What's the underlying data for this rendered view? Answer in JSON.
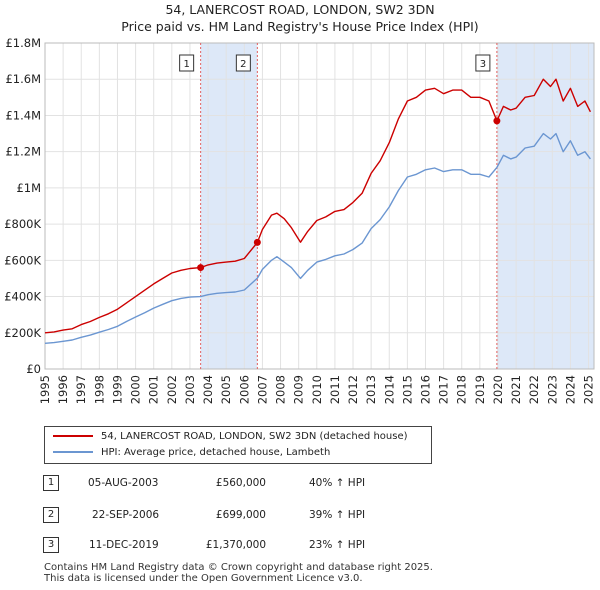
{
  "title": "54, LANERCOST ROAD, LONDON, SW2 3DN",
  "subtitle": "Price paid vs. HM Land Registry's House Price Index (HPI)",
  "legend": {
    "property": "54, LANERCOST ROAD, LONDON, SW2 3DN (detached house)",
    "hpi": "HPI: Average price, detached house, Lambeth"
  },
  "transactions": [
    {
      "num": "1",
      "date": "05-AUG-2003",
      "price": "£560,000",
      "hpi": "40% ↑ HPI"
    },
    {
      "num": "2",
      "date": "22-SEP-2006",
      "price": "£699,000",
      "hpi": "39% ↑ HPI"
    },
    {
      "num": "3",
      "date": "11-DEC-2019",
      "price": "£1,370,000",
      "hpi": "23% ↑ HPI"
    }
  ],
  "footer": {
    "line1": "Contains HM Land Registry data © Crown copyright and database right 2025.",
    "line2": "This data is licensed under the Open Government Licence v3.0."
  },
  "colors": {
    "property": "#cc0000",
    "hpi": "#6b96d1",
    "band": "#dde8f8",
    "marker_line": "#e06060"
  },
  "chart_data": {
    "type": "line",
    "xlim": [
      1995,
      2025.3
    ],
    "ylim": [
      0,
      1800000
    ],
    "y_ticks": [
      0,
      200000,
      400000,
      600000,
      800000,
      1000000,
      1200000,
      1400000,
      1600000,
      1800000
    ],
    "y_tick_labels": [
      "£0",
      "£200K",
      "£400K",
      "£600K",
      "£800K",
      "£1M",
      "£1.2M",
      "£1.4M",
      "£1.6M",
      "£1.8M"
    ],
    "x_ticks": [
      "1995",
      "1996",
      "1997",
      "1998",
      "1999",
      "2000",
      "2001",
      "2002",
      "2003",
      "2004",
      "2005",
      "2006",
      "2007",
      "2008",
      "2009",
      "2010",
      "2011",
      "2012",
      "2013",
      "2014",
      "2015",
      "2016",
      "2017",
      "2018",
      "2019",
      "2020",
      "2021",
      "2022",
      "2023",
      "2024",
      "2025"
    ],
    "shaded_ranges": [
      [
        2003.59,
        2006.72
      ],
      [
        2019.94,
        2025.3
      ]
    ],
    "markers": [
      {
        "label": "1",
        "x": 2003.59,
        "y": 560000
      },
      {
        "label": "2",
        "x": 2006.72,
        "y": 699000
      },
      {
        "label": "3",
        "x": 2019.94,
        "y": 1370000
      }
    ],
    "series": [
      {
        "name": "54, LANERCOST ROAD, LONDON, SW2 3DN (detached house)",
        "x": [
          1995,
          1995.5,
          1996,
          1996.5,
          1997,
          1997.5,
          1998,
          1998.5,
          1999,
          1999.5,
          2000,
          2000.5,
          2001,
          2001.5,
          2002,
          2002.5,
          2003,
          2003.59,
          2004,
          2004.5,
          2005,
          2005.5,
          2006,
          2006.72,
          2007,
          2007.5,
          2007.8,
          2008.2,
          2008.6,
          2009.1,
          2009.5,
          2010,
          2010.5,
          2011,
          2011.5,
          2012,
          2012.5,
          2013,
          2013.5,
          2014,
          2014.5,
          2015,
          2015.5,
          2016,
          2016.5,
          2017,
          2017.5,
          2018,
          2018.5,
          2019,
          2019.5,
          2019.94,
          2020.3,
          2020.7,
          2021,
          2021.5,
          2022,
          2022.5,
          2022.9,
          2023.2,
          2023.6,
          2024,
          2024.4,
          2024.8,
          2025.1
        ],
        "values": [
          200000,
          205000,
          215000,
          222000,
          245000,
          262000,
          285000,
          305000,
          330000,
          365000,
          400000,
          435000,
          470000,
          500000,
          530000,
          545000,
          555000,
          560000,
          575000,
          585000,
          590000,
          595000,
          610000,
          699000,
          770000,
          850000,
          860000,
          830000,
          780000,
          700000,
          760000,
          820000,
          840000,
          870000,
          880000,
          920000,
          970000,
          1080000,
          1150000,
          1250000,
          1380000,
          1480000,
          1500000,
          1540000,
          1550000,
          1520000,
          1540000,
          1540000,
          1500000,
          1500000,
          1480000,
          1370000,
          1450000,
          1430000,
          1440000,
          1500000,
          1510000,
          1600000,
          1560000,
          1600000,
          1480000,
          1550000,
          1450000,
          1480000,
          1420000
        ]
      },
      {
        "name": "HPI: Average price, detached house, Lambeth",
        "x": [
          1995,
          1995.5,
          1996,
          1996.5,
          1997,
          1997.5,
          1998,
          1998.5,
          1999,
          1999.5,
          2000,
          2000.5,
          2001,
          2001.5,
          2002,
          2002.5,
          2003,
          2003.59,
          2004,
          2004.5,
          2005,
          2005.5,
          2006,
          2006.72,
          2007,
          2007.5,
          2007.8,
          2008.2,
          2008.6,
          2009.1,
          2009.5,
          2010,
          2010.5,
          2011,
          2011.5,
          2012,
          2012.5,
          2013,
          2013.5,
          2014,
          2014.5,
          2015,
          2015.5,
          2016,
          2016.5,
          2017,
          2017.5,
          2018,
          2018.5,
          2019,
          2019.5,
          2019.94,
          2020.3,
          2020.7,
          2021,
          2021.5,
          2022,
          2022.5,
          2022.9,
          2023.2,
          2023.6,
          2024,
          2024.4,
          2024.8,
          2025.1
        ],
        "values": [
          142000,
          146000,
          153000,
          160000,
          175000,
          187000,
          203000,
          218000,
          236000,
          262000,
          287000,
          311000,
          336000,
          357000,
          377000,
          390000,
          397000,
          400000,
          410000,
          418000,
          422000,
          425000,
          436000,
          502000,
          550000,
          600000,
          620000,
          590000,
          560000,
          500000,
          545000,
          590000,
          605000,
          625000,
          635000,
          660000,
          695000,
          775000,
          825000,
          895000,
          985000,
          1060000,
          1075000,
          1100000,
          1110000,
          1090000,
          1100000,
          1100000,
          1075000,
          1075000,
          1060000,
          1113000,
          1180000,
          1160000,
          1170000,
          1220000,
          1230000,
          1300000,
          1270000,
          1300000,
          1200000,
          1260000,
          1180000,
          1200000,
          1160000
        ]
      }
    ]
  }
}
